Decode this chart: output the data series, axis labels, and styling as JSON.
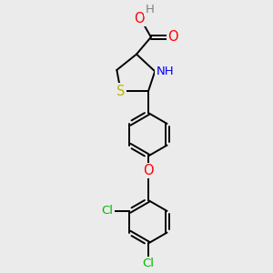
{
  "bg_color": "#ebebeb",
  "bond_color": "#000000",
  "atom_colors": {
    "S": "#b8b800",
    "N": "#0000ff",
    "O": "#ff0000",
    "H": "#808080",
    "Cl": "#00bb00",
    "C": "#000000"
  },
  "bond_width": 1.4,
  "font_size": 9.5,
  "fig_size": [
    3.0,
    3.0
  ],
  "dpi": 100
}
